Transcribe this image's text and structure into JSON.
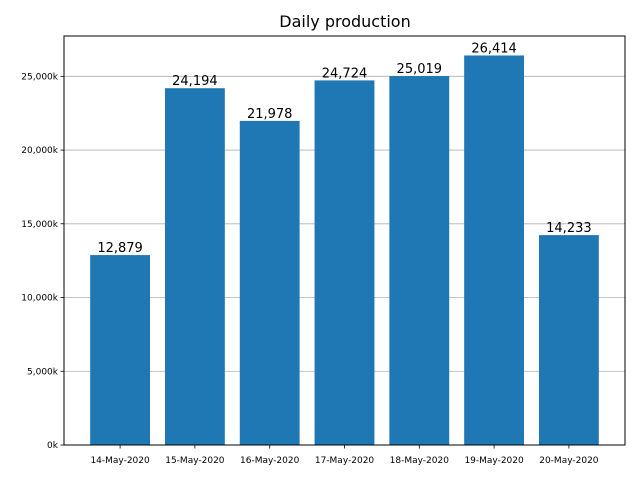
{
  "chart_data": {
    "type": "bar",
    "title": "Daily production",
    "xlabel": "",
    "ylabel": "",
    "categories": [
      "14-May-2020",
      "15-May-2020",
      "16-May-2020",
      "17-May-2020",
      "18-May-2020",
      "19-May-2020",
      "20-May-2020"
    ],
    "values": [
      12879,
      24194,
      21978,
      24724,
      25019,
      26414,
      14233
    ],
    "value_labels": [
      "12,879",
      "24,194",
      "21,978",
      "24,724",
      "25,019",
      "26,414",
      "14,233"
    ],
    "ylim": [
      0,
      27735
    ],
    "yticks": [
      0,
      5000,
      10000,
      15000,
      20000,
      25000
    ],
    "ytick_labels": [
      "0k",
      "5,000k",
      "10,000k",
      "15,000k",
      "20,000k",
      "25,000k"
    ],
    "grid": "y-axis horizontal lines",
    "bar_color": "#1f77b4",
    "grid_color": "#b0b0b0"
  }
}
